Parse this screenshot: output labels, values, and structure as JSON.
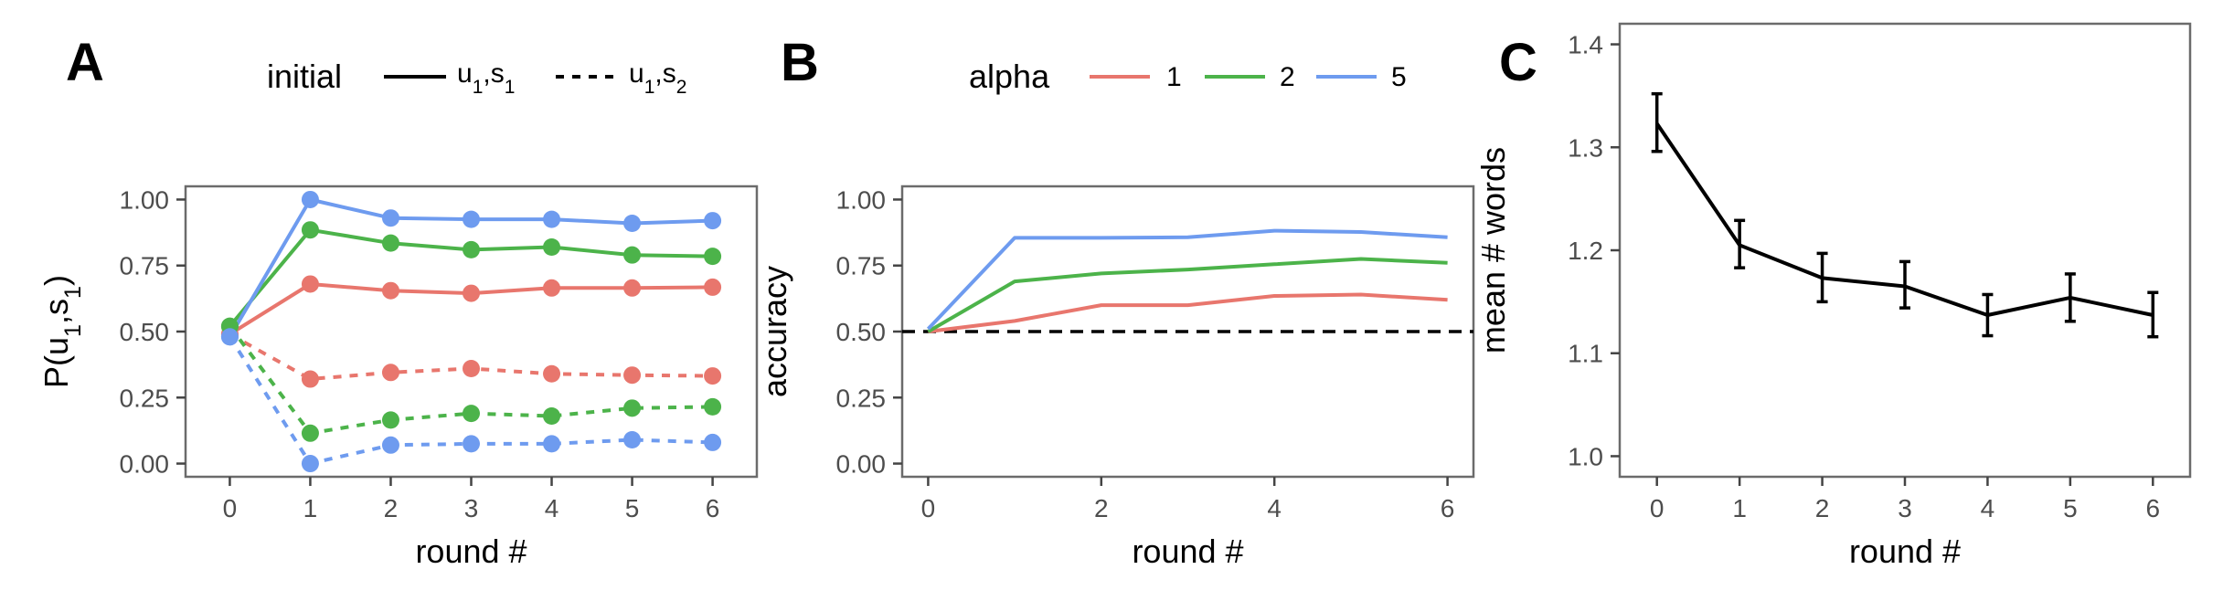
{
  "colors": {
    "c1": "#E8766D",
    "c2": "#4CB34A",
    "c5": "#6E9BEF",
    "black": "#000000",
    "ref": "#000000"
  },
  "chart_data": [
    {
      "panel": "A",
      "type": "line",
      "xlabel": "round #",
      "ylabel": "P(u1,s1)",
      "x": [
        0,
        1,
        2,
        3,
        4,
        5,
        6
      ],
      "xticks": [
        "0",
        "1",
        "2",
        "3",
        "4",
        "5",
        "6"
      ],
      "yticks": [
        "0.00",
        "0.25",
        "0.50",
        "0.75",
        "1.00"
      ],
      "xlim": [
        -0.55,
        6.55
      ],
      "ylim": [
        -0.05,
        1.05
      ],
      "legend": {
        "title": "initial",
        "entries": [
          {
            "label": "u1,s1",
            "linestyle": "solid"
          },
          {
            "label": "u1,s2",
            "linestyle": "dashed"
          }
        ]
      },
      "series": [
        {
          "alpha": "1",
          "initial": "u1,s1",
          "linestyle": "solid",
          "color": "#E8766D",
          "values": [
            0.49,
            0.68,
            0.655,
            0.645,
            0.665,
            0.665,
            0.668
          ]
        },
        {
          "alpha": "2",
          "initial": "u1,s1",
          "linestyle": "solid",
          "color": "#4CB34A",
          "values": [
            0.52,
            0.885,
            0.835,
            0.81,
            0.82,
            0.79,
            0.785
          ]
        },
        {
          "alpha": "5",
          "initial": "u1,s1",
          "linestyle": "solid",
          "color": "#6E9BEF",
          "values": [
            0.48,
            1.0,
            0.93,
            0.925,
            0.925,
            0.91,
            0.92
          ]
        },
        {
          "alpha": "1",
          "initial": "u1,s2",
          "linestyle": "dashed",
          "color": "#E8766D",
          "values": [
            0.49,
            0.32,
            0.345,
            0.36,
            0.34,
            0.335,
            0.332
          ]
        },
        {
          "alpha": "2",
          "initial": "u1,s2",
          "linestyle": "dashed",
          "color": "#4CB34A",
          "values": [
            0.52,
            0.115,
            0.165,
            0.19,
            0.18,
            0.21,
            0.215
          ]
        },
        {
          "alpha": "5",
          "initial": "u1,s2",
          "linestyle": "dashed",
          "color": "#6E9BEF",
          "values": [
            0.48,
            0.0,
            0.07,
            0.075,
            0.075,
            0.09,
            0.08
          ]
        }
      ]
    },
    {
      "panel": "B",
      "type": "line",
      "xlabel": "round #",
      "ylabel": "accuracy",
      "x": [
        0,
        1,
        2,
        3,
        4,
        5,
        6
      ],
      "xticks": [
        "0",
        "2",
        "4",
        "6"
      ],
      "yticks": [
        "0.00",
        "0.25",
        "0.50",
        "0.75",
        "1.00"
      ],
      "xlim": [
        -0.3,
        6.3
      ],
      "ylim": [
        -0.05,
        1.05
      ],
      "reference_line": {
        "y": 0.5,
        "linestyle": "dashed"
      },
      "legend": {
        "title": "alpha",
        "entries": [
          {
            "label": "1",
            "color": "#E8766D"
          },
          {
            "label": "2",
            "color": "#4CB34A"
          },
          {
            "label": "5",
            "color": "#6E9BEF"
          }
        ]
      },
      "series": [
        {
          "name": "1",
          "color": "#E8766D",
          "values": [
            0.5,
            0.54,
            0.6,
            0.6,
            0.635,
            0.64,
            0.62
          ]
        },
        {
          "name": "2",
          "color": "#4CB34A",
          "values": [
            0.5,
            0.69,
            0.72,
            0.735,
            0.755,
            0.775,
            0.76
          ]
        },
        {
          "name": "5",
          "color": "#6E9BEF",
          "values": [
            0.51,
            0.855,
            0.855,
            0.857,
            0.882,
            0.877,
            0.857
          ]
        }
      ]
    },
    {
      "panel": "C",
      "type": "line",
      "xlabel": "round #",
      "ylabel": "mean # words",
      "x": [
        0,
        1,
        2,
        3,
        4,
        5,
        6
      ],
      "xticks": [
        "0",
        "1",
        "2",
        "3",
        "4",
        "5",
        "6"
      ],
      "yticks": [
        "1.0",
        "1.1",
        "1.2",
        "1.3",
        "1.4"
      ],
      "xlim": [
        -0.45,
        6.45
      ],
      "ylim": [
        0.98,
        1.42
      ],
      "series": [
        {
          "color": "#000000",
          "values": [
            1.323,
            1.205,
            1.173,
            1.165,
            1.137,
            1.154,
            1.137
          ],
          "error_low": [
            1.296,
            1.183,
            1.15,
            1.144,
            1.117,
            1.131,
            1.116
          ],
          "error_high": [
            1.352,
            1.229,
            1.197,
            1.189,
            1.157,
            1.177,
            1.159
          ]
        }
      ]
    }
  ]
}
